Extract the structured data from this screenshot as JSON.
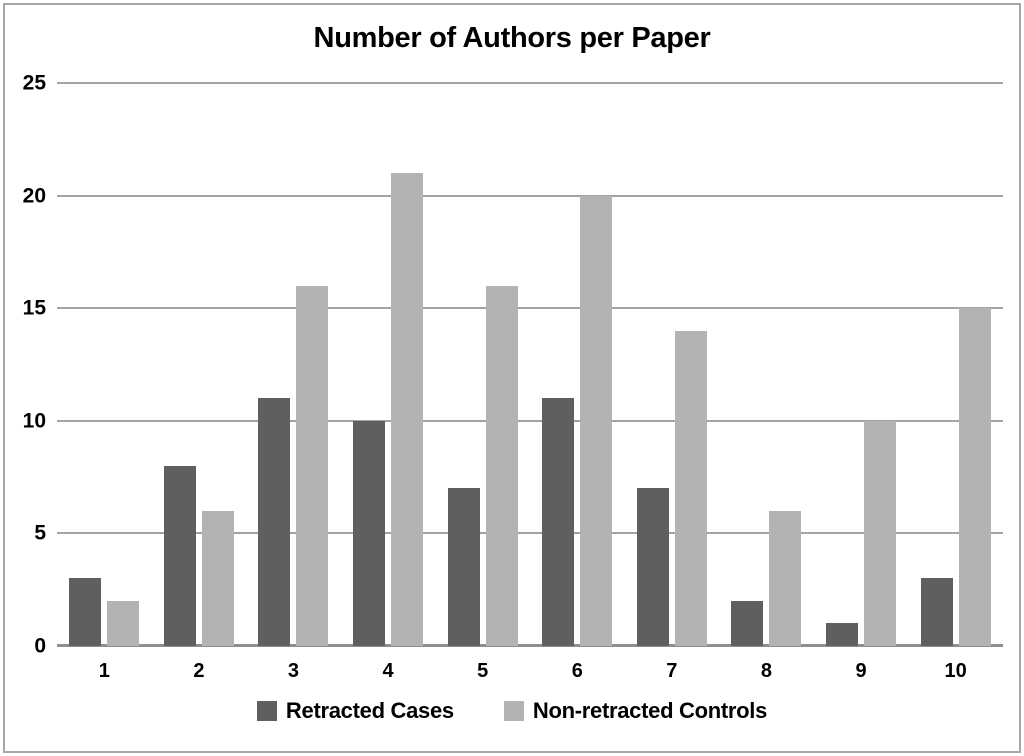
{
  "chart_data": {
    "type": "bar",
    "title": "Number of Authors per Paper",
    "categories": [
      "1",
      "2",
      "3",
      "4",
      "5",
      "6",
      "7",
      "8",
      "9",
      "10"
    ],
    "series": [
      {
        "name": "Retracted Cases",
        "color": "#5f5f5f",
        "values": [
          3,
          8,
          11,
          10,
          7,
          11,
          7,
          2,
          1,
          3
        ]
      },
      {
        "name": "Non-retracted Controls",
        "color": "#b3b3b3",
        "values": [
          2,
          6,
          16,
          21,
          16,
          20,
          14,
          6,
          10,
          15
        ]
      }
    ],
    "xlabel": "",
    "ylabel": "",
    "ylim": [
      0,
      25
    ],
    "yticks": [
      0,
      5,
      10,
      15,
      20,
      25
    ],
    "grid": "horizontal",
    "legend_position": "bottom",
    "colors": {
      "gridline": "#a3a3a3",
      "baseline": "#8f8f8f",
      "border": "#a6a6a6",
      "text": "#000000",
      "background": "#ffffff"
    }
  }
}
